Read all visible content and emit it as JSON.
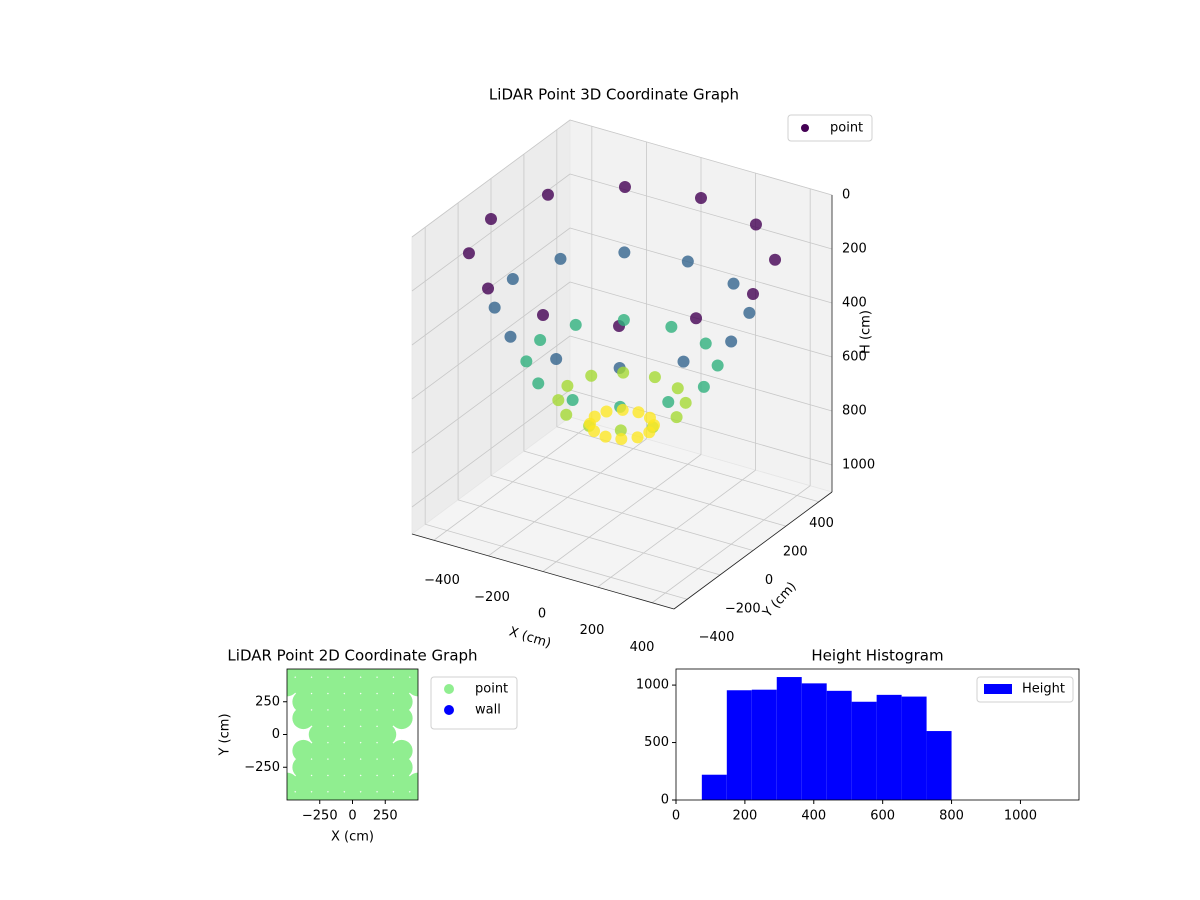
{
  "chart_data": [
    {
      "type": "scatter3d",
      "title": "LiDAR Point 3D Coordinate Graph",
      "xlabel": "X (cm)",
      "ylabel": "Y (cm)",
      "zlabel": "H (cm)",
      "xlim": [
        -480,
        480
      ],
      "ylim": [
        -480,
        480
      ],
      "zlim": [
        1100,
        0
      ],
      "xticks": [
        {
          "value": -400,
          "label": "−400"
        },
        {
          "value": -200,
          "label": "−200"
        },
        0,
        200,
        400
      ],
      "yticks": [
        {
          "value": -400,
          "label": "−400"
        },
        {
          "value": -200,
          "label": "−200"
        },
        0,
        200,
        400
      ],
      "zticks": [
        0,
        200,
        400,
        600,
        800,
        1000
      ],
      "colormap": "viridis",
      "grid": true,
      "legend": "upper right",
      "series": [
        {
          "name": "point",
          "x": [
            480,
            416,
            240,
            0,
            -240,
            -416,
            -480,
            -416,
            -240,
            0,
            240,
            416,
            400,
            346,
            200,
            0,
            -200,
            -346,
            -400,
            -346,
            -200,
            0,
            200,
            346,
            300,
            260,
            150,
            0,
            -150,
            -260,
            -300,
            -260,
            -150,
            0,
            150,
            260,
            200,
            173,
            100,
            0,
            -100,
            -173,
            -200,
            -173,
            -100,
            0,
            100,
            173,
            100,
            87,
            50,
            0,
            -50,
            -87,
            -100,
            -87,
            -50,
            0,
            50,
            87
          ],
          "y": [
            0,
            240,
            416,
            480,
            416,
            240,
            0,
            -240,
            -416,
            -480,
            -416,
            -240,
            0,
            200,
            346,
            400,
            346,
            200,
            0,
            -200,
            -346,
            -400,
            -346,
            -200,
            0,
            150,
            260,
            300,
            260,
            150,
            0,
            -150,
            -260,
            -300,
            -260,
            -150,
            0,
            100,
            173,
            200,
            173,
            100,
            0,
            -100,
            -173,
            -200,
            -173,
            -100,
            0,
            50,
            87,
            100,
            87,
            50,
            0,
            -50,
            -87,
            -100,
            -87,
            -50
          ],
          "z": [
            150,
            150,
            150,
            150,
            150,
            150,
            150,
            150,
            150,
            150,
            150,
            150,
            349,
            349,
            349,
            349,
            349,
            349,
            349,
            349,
            349,
            349,
            349,
            349,
            546,
            546,
            546,
            546,
            546,
            546,
            546,
            546,
            546,
            546,
            546,
            546,
            687,
            687,
            687,
            687,
            687,
            687,
            687,
            687,
            687,
            687,
            687,
            687,
            772,
            772,
            772,
            772,
            772,
            772,
            772,
            772,
            772,
            772,
            772,
            772
          ]
        }
      ]
    },
    {
      "type": "scatter",
      "title": "LiDAR Point 2D Coordinate Graph",
      "xlabel": "X (cm)",
      "ylabel": "Y (cm)",
      "xlim": [
        -500,
        500
      ],
      "ylim": [
        -500,
        500
      ],
      "xticks": [
        {
          "value": -250,
          "label": "−250"
        },
        0,
        250
      ],
      "yticks": [
        {
          "value": -250,
          "label": "−250"
        },
        0,
        250
      ],
      "legend": "outside right",
      "series": [
        {
          "name": "point",
          "color": "#90ee90",
          "x": [
            -500,
            -375,
            -250,
            -125,
            0,
            125,
            250,
            375,
            500,
            -500,
            -375,
            -250,
            -125,
            0,
            125,
            250,
            375,
            500,
            -375,
            -250,
            -125,
            0,
            125,
            250,
            375,
            -375,
            -250,
            -125,
            0,
            125,
            250,
            375,
            -250,
            -125,
            0,
            125,
            250,
            -375,
            -250,
            -125,
            0,
            125,
            250,
            375,
            -375,
            -250,
            -125,
            0,
            125,
            250,
            375,
            -500,
            -375,
            -250,
            -125,
            0,
            125,
            250,
            375,
            500,
            -500,
            -375,
            -250,
            -125,
            0,
            125,
            250,
            375,
            500
          ],
          "y": [
            -500,
            -500,
            -500,
            -500,
            -500,
            -500,
            -500,
            -500,
            -500,
            -375,
            -375,
            -375,
            -375,
            -375,
            -375,
            -375,
            -375,
            -375,
            -250,
            -250,
            -250,
            -250,
            -250,
            -250,
            -250,
            -125,
            -125,
            -125,
            -125,
            -125,
            -125,
            -125,
            0,
            0,
            0,
            0,
            0,
            125,
            125,
            125,
            125,
            125,
            125,
            125,
            250,
            250,
            250,
            250,
            250,
            250,
            250,
            375,
            375,
            375,
            375,
            375,
            375,
            375,
            375,
            375,
            500,
            500,
            500,
            500,
            500,
            500,
            500,
            500,
            500
          ]
        },
        {
          "name": "wall",
          "color": "#0000ff",
          "x": [],
          "y": []
        }
      ]
    },
    {
      "type": "histogram",
      "title": "Height Histogram",
      "xlim": [
        0,
        1170
      ],
      "ylim": [
        0,
        1140
      ],
      "xticks": [
        0,
        200,
        400,
        600,
        800,
        1000
      ],
      "yticks": [
        0,
        500,
        1000
      ],
      "bins": [
        75,
        147.5,
        220,
        292.5,
        365,
        437.5,
        510,
        582.5,
        655,
        727.5,
        800
      ],
      "legend": "upper right",
      "series": [
        {
          "name": "Height",
          "color": "#0000ff",
          "values": [
            220,
            955,
            960,
            1070,
            1015,
            950,
            855,
            915,
            900,
            600
          ]
        }
      ]
    }
  ]
}
